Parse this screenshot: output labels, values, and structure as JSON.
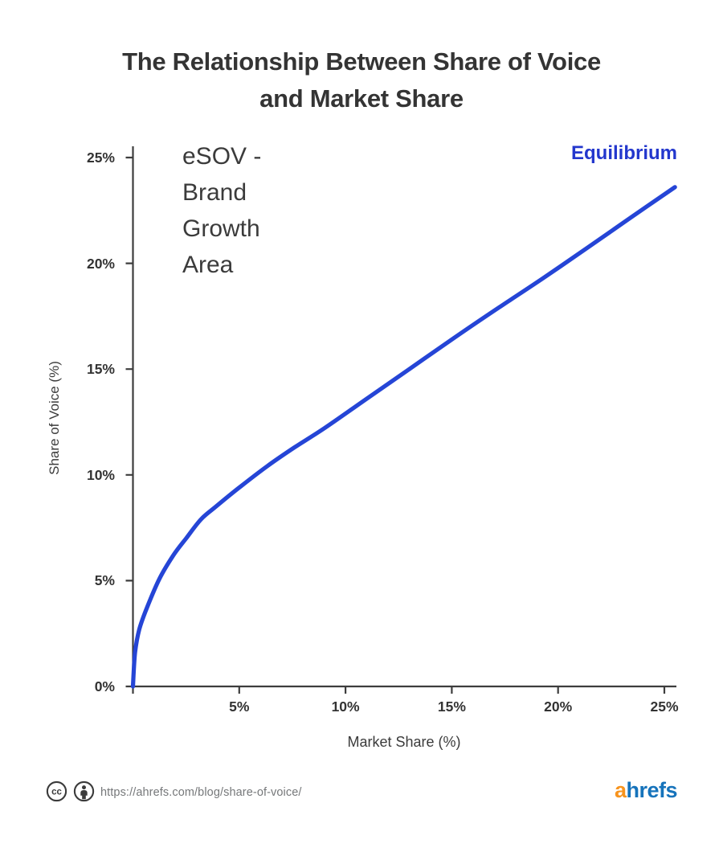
{
  "title": {
    "line1": "The Relationship Between Share of Voice",
    "line2": "and Market Share"
  },
  "annotations": {
    "esov_area": "eSOV -\nBrand\nGrowth\nArea",
    "equilibrium": "Equilibrium"
  },
  "axes": {
    "x_label": "Market Share (%)",
    "y_label": "Share of Voice (%)",
    "x_ticks": [
      {
        "label": "5%",
        "value": 5
      },
      {
        "label": "10%",
        "value": 10
      },
      {
        "label": "15%",
        "value": 15
      },
      {
        "label": "20%",
        "value": 20
      },
      {
        "label": "25%",
        "value": 25
      }
    ],
    "y_ticks": [
      {
        "label": "0%",
        "value": 0
      },
      {
        "label": "5%",
        "value": 5
      },
      {
        "label": "10%",
        "value": 10
      },
      {
        "label": "15%",
        "value": 15
      },
      {
        "label": "20%",
        "value": 20
      },
      {
        "label": "25%",
        "value": 25
      }
    ],
    "x_tick_marks": [
      0,
      5,
      10,
      15,
      20,
      25
    ],
    "y_tick_marks": [
      0,
      5,
      10,
      15,
      20,
      25
    ]
  },
  "footer": {
    "cc_label": "cc",
    "license_icons": [
      "cc-icon",
      "attribution-person-icon"
    ],
    "url": "https://ahrefs.com/blog/share-of-voice/",
    "logo": {
      "part1": "a",
      "part2": "hrefs"
    }
  },
  "colors": {
    "curve_blue": "#2545d6",
    "equilibrium_blue": "#2337cd",
    "axis_dark": "#3d3d3d",
    "text_dark": "#333333",
    "url_gray": "#76787a",
    "logo_orange": "#f7941e",
    "logo_blue": "#1673bb"
  },
  "chart_data": {
    "type": "line",
    "title": "The Relationship Between Share of Voice and Market Share",
    "xlabel": "Market Share (%)",
    "ylabel": "Share of Voice (%)",
    "xlim": [
      0,
      25.6
    ],
    "ylim": [
      0,
      25
    ],
    "x_tick_values": [
      5,
      10,
      15,
      20,
      25
    ],
    "y_tick_values": [
      0,
      5,
      10,
      15,
      20,
      25
    ],
    "grid": false,
    "legend_position": "none",
    "annotations": [
      {
        "text": "eSOV - Brand Growth Area",
        "x": 2.5,
        "y": 23,
        "region": "above-curve"
      },
      {
        "text": "Equilibrium",
        "x": 24,
        "y": 25,
        "color": "#2337cd"
      }
    ],
    "series": [
      {
        "name": "eSOV curve (SOV vs Market Share)",
        "points": [
          [
            0,
            0
          ],
          [
            0.1,
            1.6
          ],
          [
            0.3,
            2.7
          ],
          [
            0.65,
            3.7
          ],
          [
            1.25,
            5.1
          ],
          [
            1.9,
            6.2
          ],
          [
            2.5,
            7.0
          ],
          [
            3.2,
            7.9
          ],
          [
            3.9,
            8.5
          ],
          [
            5,
            9.4
          ],
          [
            6.3,
            10.4
          ],
          [
            7.6,
            11.3
          ],
          [
            9,
            12.2
          ],
          [
            11,
            13.6
          ],
          [
            13,
            15.0
          ],
          [
            15,
            16.4
          ],
          [
            17.2,
            17.9
          ],
          [
            19.3,
            19.3
          ],
          [
            21.4,
            20.75
          ],
          [
            23.4,
            22.15
          ],
          [
            25.5,
            23.6
          ]
        ]
      }
    ]
  }
}
